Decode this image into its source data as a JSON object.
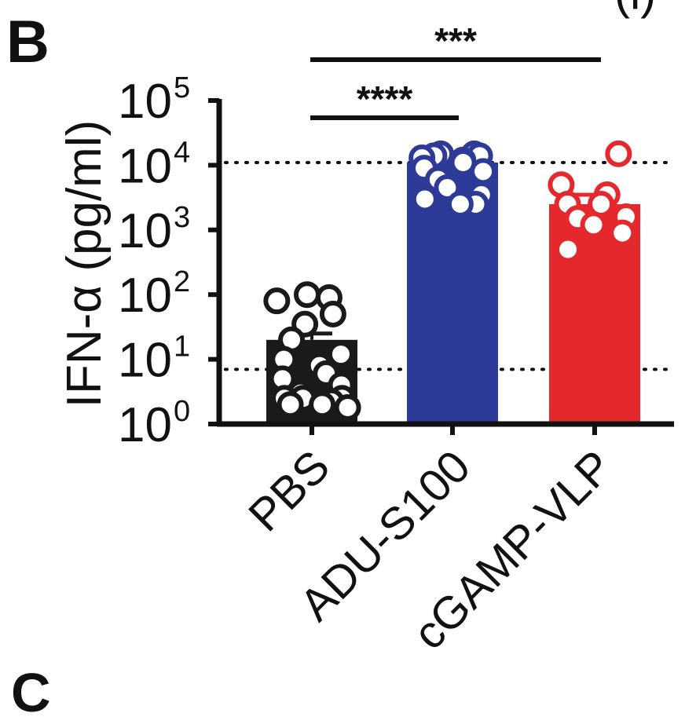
{
  "panel_labels": {
    "main": "B",
    "next": "C",
    "corner": "(i)"
  },
  "chart_data": {
    "type": "bar",
    "title": "",
    "xlabel": "",
    "ylabel": "IFN-α (pg/ml)",
    "yscale": "log",
    "ylim": [
      1,
      100000
    ],
    "yticks": [
      {
        "value": 1,
        "base": "10",
        "exp": "0"
      },
      {
        "value": 10,
        "base": "10",
        "exp": "1"
      },
      {
        "value": 100,
        "base": "10",
        "exp": "2"
      },
      {
        "value": 1000,
        "base": "10",
        "exp": "3"
      },
      {
        "value": 10000,
        "base": "10",
        "exp": "4"
      },
      {
        "value": 100000,
        "base": "10",
        "exp": "5"
      }
    ],
    "reference_lines": [
      11000,
      7
    ],
    "categories": [
      "PBS",
      "ADU-S100",
      "cGAMP-VLP"
    ],
    "series": [
      {
        "category": "PBS",
        "mean": 20,
        "error_upper": 25,
        "color": "#1a1a1a",
        "points": [
          100,
          90,
          80,
          50,
          35,
          20,
          12,
          10,
          8,
          6,
          5,
          4,
          3,
          2.5,
          2.5,
          2.5,
          2.2,
          2,
          2,
          1.8
        ]
      },
      {
        "category": "ADU-S100",
        "mean": 11000,
        "error_upper": 11000,
        "color": "#2e3a97",
        "points": [
          15000,
          15000,
          14000,
          14000,
          13000,
          12000,
          11000,
          9000,
          8000,
          6000,
          4500,
          3500,
          3000,
          2500,
          2500
        ]
      },
      {
        "category": "cGAMP-VLP",
        "mean": 2500,
        "error_upper": 3500,
        "color": "#e5282e",
        "points": [
          15000,
          5000,
          3500,
          2500,
          2500,
          1600,
          1500,
          1200,
          900,
          500
        ]
      }
    ],
    "significance": [
      {
        "from": "PBS",
        "to": "cGAMP-VLP",
        "label": "***"
      },
      {
        "from": "PBS",
        "to": "ADU-S100",
        "label": "****"
      }
    ]
  }
}
